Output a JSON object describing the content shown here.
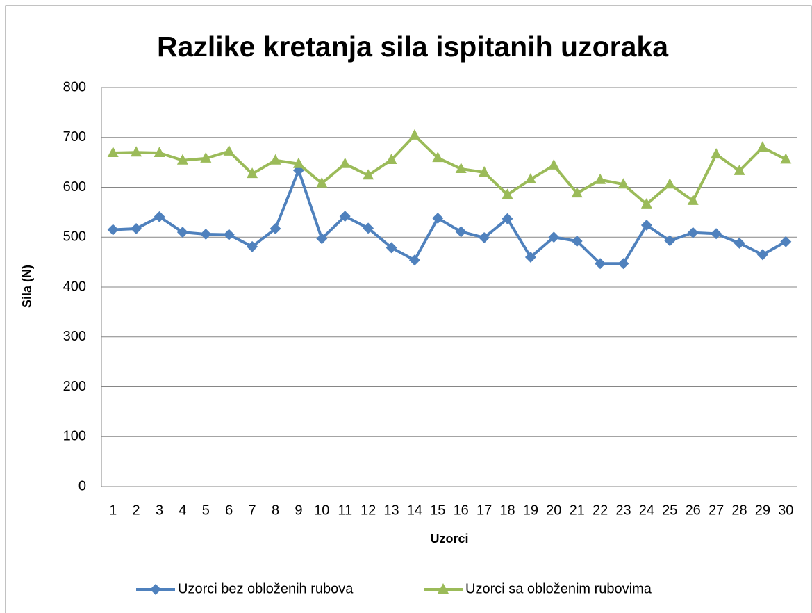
{
  "chart_data": {
    "type": "line",
    "title": "Razlike kretanja sila ispitanih uzoraka",
    "x_label": "Uzorci",
    "y_label": "Sila (N)",
    "categories": [
      "1",
      "2",
      "3",
      "4",
      "5",
      "6",
      "7",
      "8",
      "9",
      "10",
      "11",
      "12",
      "13",
      "14",
      "15",
      "16",
      "17",
      "18",
      "19",
      "20",
      "21",
      "22",
      "23",
      "24",
      "25",
      "26",
      "27",
      "28",
      "29",
      "30"
    ],
    "series": [
      {
        "name": "Uzorci bez obloženih rubova",
        "color": "#4f81bd",
        "marker": "diamond",
        "values": [
          515,
          517,
          541,
          510,
          506,
          505,
          481,
          517,
          634,
          497,
          542,
          518,
          479,
          454,
          538,
          511,
          499,
          537,
          460,
          500,
          492,
          447,
          447,
          524,
          493,
          509,
          507,
          488,
          465,
          491
        ]
      },
      {
        "name": "Uzorci sa obloženim rubovima",
        "color": "#9bbb59",
        "marker": "triangle",
        "values": [
          669,
          670,
          669,
          654,
          658,
          672,
          627,
          654,
          647,
          608,
          647,
          624,
          655,
          704,
          659,
          637,
          630,
          585,
          616,
          644,
          588,
          615,
          606,
          566,
          606,
          573,
          666,
          633,
          680,
          656
        ]
      }
    ],
    "ylim": [
      0,
      800
    ],
    "yticks": [
      0,
      100,
      200,
      300,
      400,
      500,
      600,
      700,
      800
    ],
    "grid": true,
    "legend": "bottom"
  }
}
